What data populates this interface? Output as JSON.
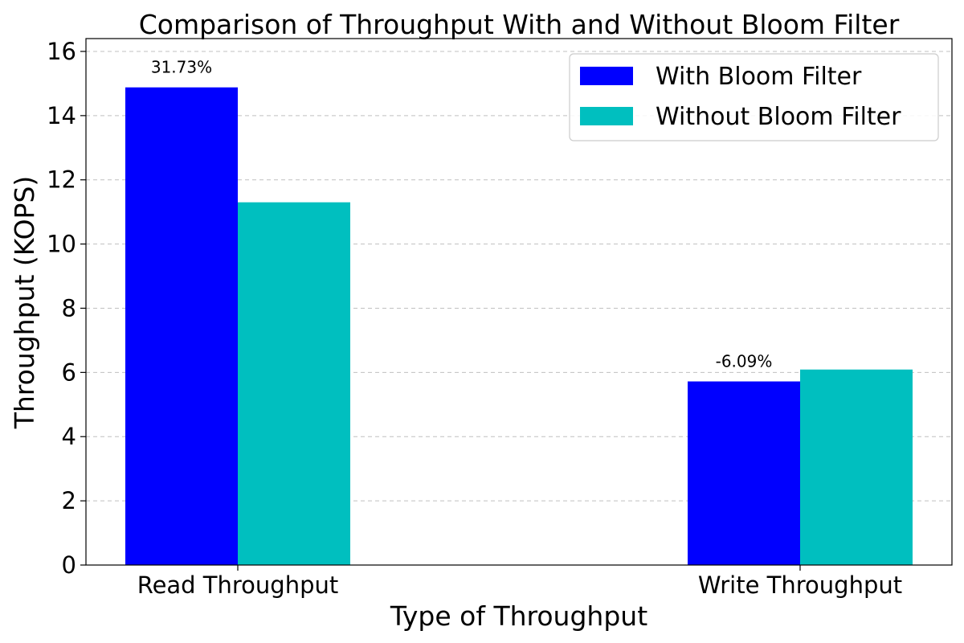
{
  "chart_data": {
    "type": "bar",
    "title": "Comparison of Throughput With and Without Bloom Filter",
    "xlabel": "Type of Throughput",
    "ylabel": "Throughput (KOPS)",
    "categories": [
      "Read Throughput",
      "Write Throughput"
    ],
    "series": [
      {
        "name": "With Bloom Filter",
        "color": "#0000ff",
        "values": [
          14.88,
          5.72
        ]
      },
      {
        "name": "Without Bloom Filter",
        "color": "#00bfbf",
        "values": [
          11.3,
          6.09
        ]
      }
    ],
    "bar_annotations": [
      "31.73%",
      "-6.09%"
    ],
    "ylim": [
      0,
      16.4
    ],
    "yticks": [
      0,
      2,
      4,
      6,
      8,
      10,
      12,
      14,
      16
    ],
    "grid": "y-dashed",
    "legend_position": "top-right"
  }
}
